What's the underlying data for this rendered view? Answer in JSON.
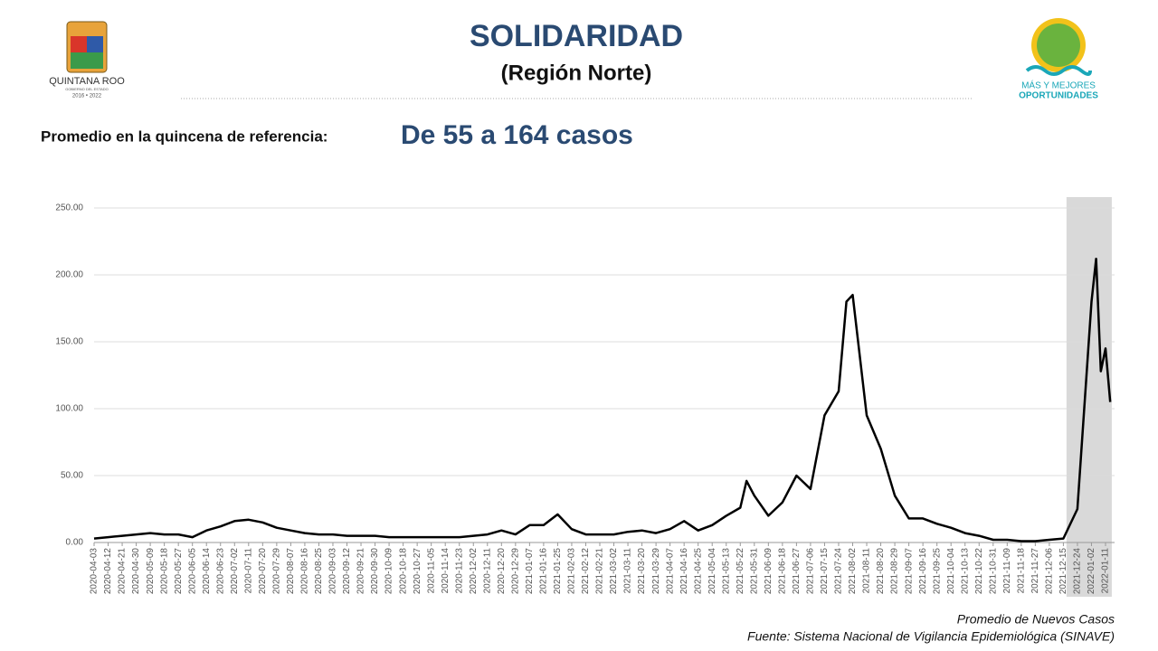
{
  "header": {
    "title": "SOLIDARIDAD",
    "subtitle": "(Región Norte)",
    "left_logo": [
      "QUINTANA ROO",
      "GOBIERNO DEL ESTADO",
      "2016 • 2022"
    ],
    "right_logo": [
      "MÁS Y MEJORES",
      "OPORTUNIDADES"
    ]
  },
  "summary": {
    "label": "Promedio en la quincena de referencia:",
    "value": "De 55 a 164 casos"
  },
  "footer": {
    "legend": "Promedio de Nuevos Casos",
    "source": "Fuente: Sistema Nacional de Vigilancia Epidemiológica (SINAVE)"
  },
  "chart_data": {
    "type": "line",
    "color": "#000000",
    "grid": true,
    "highlight": [
      "2021-12-17",
      "2022-01-15"
    ],
    "highlight_color": "#d9d9d9",
    "ylim": [
      0,
      250
    ],
    "yticks": [
      {
        "value": 0,
        "label": "0.00"
      },
      {
        "value": 50,
        "label": "50.00"
      },
      {
        "value": 100,
        "label": "100.00"
      },
      {
        "value": 150,
        "label": "150.00"
      },
      {
        "value": 200,
        "label": "200.00"
      },
      {
        "value": 250,
        "label": "250.00"
      }
    ],
    "xticks": [
      "2020-04-03",
      "2020-04-12",
      "2020-04-21",
      "2020-04-30",
      "2020-05-09",
      "2020-05-18",
      "2020-05-27",
      "2020-06-05",
      "2020-06-14",
      "2020-06-23",
      "2020-07-02",
      "2020-07-11",
      "2020-07-20",
      "2020-07-29",
      "2020-08-07",
      "2020-08-16",
      "2020-08-25",
      "2020-09-03",
      "2020-09-12",
      "2020-09-21",
      "2020-09-30",
      "2020-10-09",
      "2020-10-18",
      "2020-10-27",
      "2020-11-05",
      "2020-11-14",
      "2020-11-23",
      "2020-12-02",
      "2020-12-11",
      "2020-12-20",
      "2020-12-29",
      "2021-01-07",
      "2021-01-16",
      "2021-01-25",
      "2021-02-03",
      "2021-02-12",
      "2021-02-21",
      "2021-03-02",
      "2021-03-11",
      "2021-03-20",
      "2021-03-29",
      "2021-04-07",
      "2021-04-16",
      "2021-04-25",
      "2021-05-04",
      "2021-05-13",
      "2021-05-22",
      "2021-05-31",
      "2021-06-09",
      "2021-06-18",
      "2021-06-27",
      "2021-07-06",
      "2021-07-15",
      "2021-07-24",
      "2021-08-02",
      "2021-08-11",
      "2021-08-20",
      "2021-08-29",
      "2021-09-07",
      "2021-09-16",
      "2021-09-25",
      "2021-10-04",
      "2021-10-13",
      "2021-10-22",
      "2021-10-31",
      "2021-11-09",
      "2021-11-18",
      "2021-11-27",
      "2021-12-06",
      "2021-12-15",
      "2021-12-24",
      "2022-01-02",
      "2022-01-11"
    ],
    "x": [
      "2020-04-03",
      "2020-04-12",
      "2020-04-21",
      "2020-04-30",
      "2020-05-09",
      "2020-05-18",
      "2020-05-27",
      "2020-06-05",
      "2020-06-14",
      "2020-06-23",
      "2020-07-02",
      "2020-07-11",
      "2020-07-20",
      "2020-07-29",
      "2020-08-07",
      "2020-08-16",
      "2020-08-25",
      "2020-09-03",
      "2020-09-12",
      "2020-09-21",
      "2020-09-30",
      "2020-10-09",
      "2020-10-18",
      "2020-10-27",
      "2020-11-05",
      "2020-11-14",
      "2020-11-23",
      "2020-12-02",
      "2020-12-11",
      "2020-12-20",
      "2020-12-29",
      "2021-01-07",
      "2021-01-16",
      "2021-01-25",
      "2021-02-03",
      "2021-02-12",
      "2021-02-21",
      "2021-03-02",
      "2021-03-11",
      "2021-03-20",
      "2021-03-29",
      "2021-04-07",
      "2021-04-16",
      "2021-04-25",
      "2021-05-04",
      "2021-05-13",
      "2021-05-22",
      "2021-05-26",
      "2021-05-31",
      "2021-06-09",
      "2021-06-18",
      "2021-06-27",
      "2021-07-06",
      "2021-07-15",
      "2021-07-24",
      "2021-07-29",
      "2021-08-02",
      "2021-08-11",
      "2021-08-20",
      "2021-08-29",
      "2021-09-07",
      "2021-09-16",
      "2021-09-25",
      "2021-10-04",
      "2021-10-13",
      "2021-10-22",
      "2021-10-31",
      "2021-11-09",
      "2021-11-18",
      "2021-11-27",
      "2021-12-06",
      "2021-12-15",
      "2021-12-24",
      "2022-01-02",
      "2022-01-05",
      "2022-01-08",
      "2022-01-11",
      "2022-01-14"
    ],
    "values": [
      3,
      4,
      5,
      6,
      7,
      6,
      6,
      4,
      9,
      12,
      16,
      17,
      15,
      11,
      9,
      7,
      6,
      6,
      5,
      5,
      5,
      4,
      4,
      4,
      4,
      4,
      4,
      5,
      6,
      9,
      6,
      13,
      13,
      21,
      10,
      6,
      6,
      6,
      8,
      9,
      7,
      10,
      16,
      9,
      13,
      20,
      26,
      46,
      35,
      20,
      30,
      50,
      40,
      95,
      113,
      180,
      185,
      95,
      70,
      35,
      18,
      18,
      14,
      11,
      7,
      5,
      2,
      2,
      1,
      1,
      2,
      3,
      25,
      180,
      212,
      128,
      145,
      105
    ]
  }
}
